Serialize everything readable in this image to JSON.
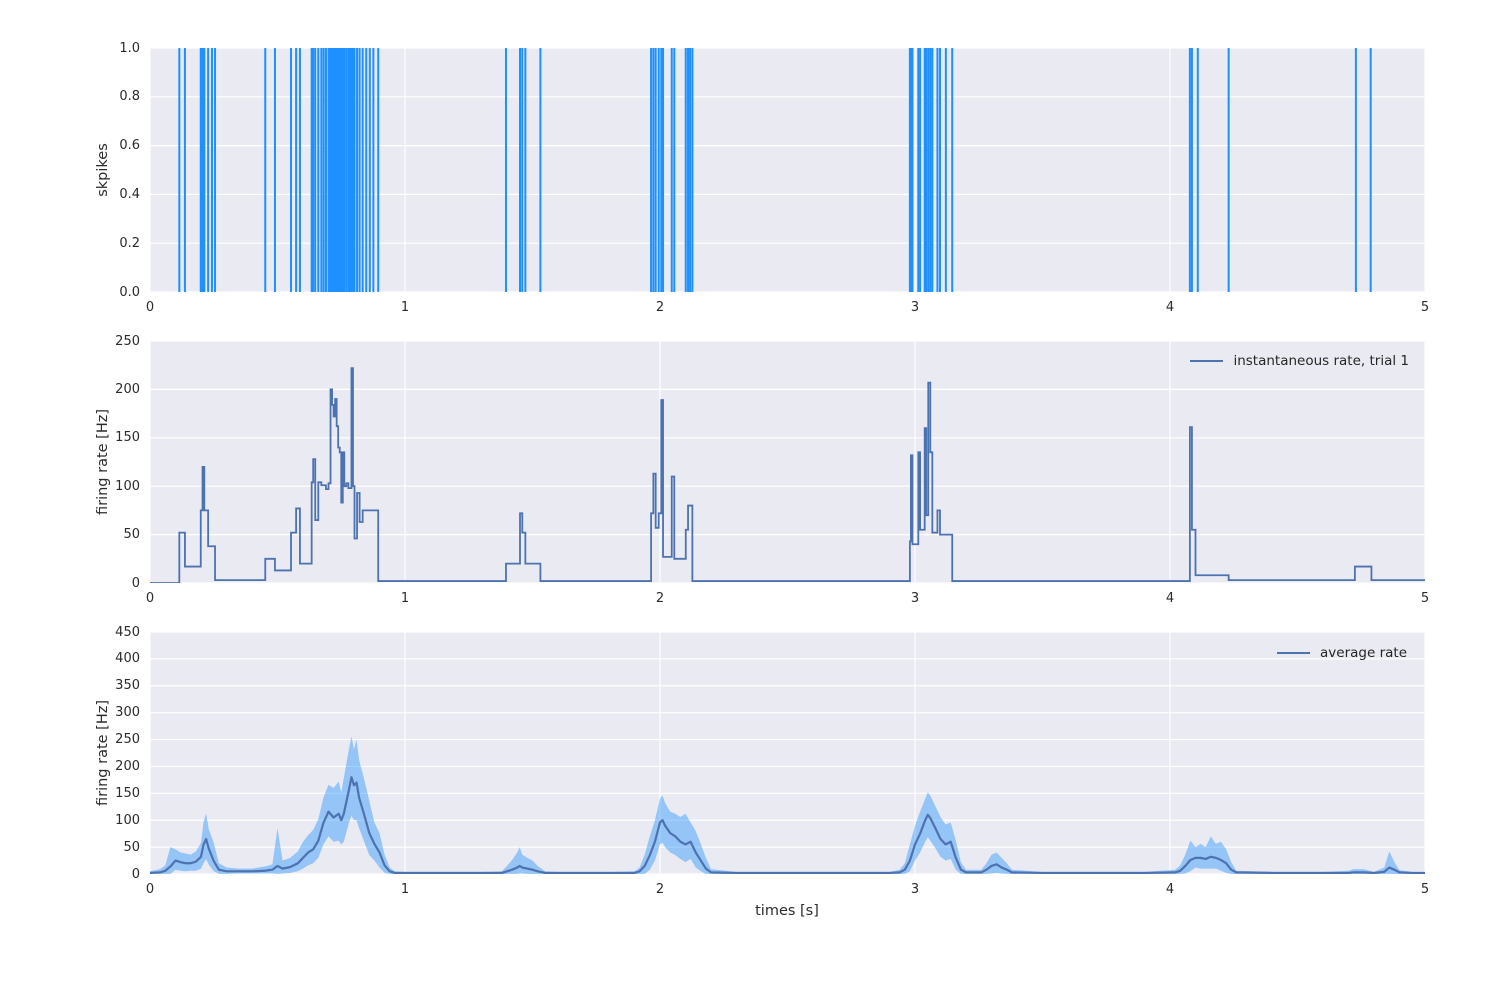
{
  "figure": {
    "background": "#ffffff",
    "axes_background": "#eaeaf2",
    "grid_color": "#ffffff",
    "text_color": "#2b2b2b"
  },
  "xticks": {
    "values": [
      0,
      1,
      2,
      3,
      4,
      5
    ],
    "labels": [
      "0",
      "1",
      "2",
      "3",
      "4",
      "5"
    ]
  },
  "chart_data": [
    {
      "type": "event-raster",
      "name": "spike-raster",
      "ylabel": "skpikes",
      "xlim": [
        0,
        5
      ],
      "ylim": [
        0,
        1
      ],
      "yticks": {
        "values": [
          0,
          0.2,
          0.4,
          0.6,
          0.8,
          1.0
        ],
        "labels": [
          "0.0",
          "0.2",
          "0.4",
          "0.6",
          "0.8",
          "1.0"
        ]
      },
      "grid": true,
      "color": "#1e90ff",
      "spike_times": [
        0.115,
        0.137,
        0.199,
        0.206,
        0.213,
        0.228,
        0.243,
        0.255,
        0.452,
        0.49,
        0.553,
        0.573,
        0.588,
        0.634,
        0.64,
        0.648,
        0.66,
        0.672,
        0.681,
        0.69,
        0.7,
        0.708,
        0.714,
        0.72,
        0.726,
        0.732,
        0.738,
        0.744,
        0.75,
        0.756,
        0.762,
        0.77,
        0.778,
        0.784,
        0.79,
        0.796,
        0.802,
        0.812,
        0.822,
        0.834,
        0.848,
        0.862,
        0.876,
        0.895,
        1.396,
        1.451,
        1.46,
        1.472,
        1.531,
        1.965,
        1.974,
        1.983,
        1.995,
        2.005,
        2.012,
        2.046,
        2.056,
        2.101,
        2.11,
        2.118,
        2.127,
        2.98,
        2.984,
        2.99,
        3.013,
        3.02,
        3.038,
        3.044,
        3.052,
        3.06,
        3.068,
        3.088,
        3.098,
        3.121,
        3.146,
        4.078,
        4.086,
        4.109,
        4.23,
        4.729,
        4.787
      ]
    },
    {
      "type": "step-line",
      "name": "instantaneous-rate",
      "ylabel": "firing rate [Hz]",
      "xlim": [
        0,
        5
      ],
      "ylim": [
        0,
        250
      ],
      "yticks": {
        "values": [
          0,
          50,
          100,
          150,
          200,
          250
        ],
        "labels": [
          "0",
          "50",
          "100",
          "150",
          "200",
          "250"
        ]
      },
      "grid": true,
      "legend": "instantaneous rate, trial 1",
      "legend_position": "upper right",
      "color": "#4c72b0",
      "steps": [
        [
          0.0,
          0
        ],
        [
          0.115,
          52
        ],
        [
          0.137,
          17
        ],
        [
          0.199,
          75
        ],
        [
          0.206,
          120
        ],
        [
          0.213,
          75
        ],
        [
          0.228,
          38
        ],
        [
          0.255,
          3
        ],
        [
          0.452,
          25
        ],
        [
          0.49,
          13
        ],
        [
          0.553,
          52
        ],
        [
          0.573,
          77
        ],
        [
          0.588,
          20
        ],
        [
          0.634,
          104
        ],
        [
          0.64,
          128
        ],
        [
          0.648,
          65
        ],
        [
          0.66,
          104
        ],
        [
          0.672,
          101
        ],
        [
          0.69,
          97
        ],
        [
          0.7,
          103
        ],
        [
          0.708,
          200
        ],
        [
          0.714,
          184
        ],
        [
          0.72,
          172
        ],
        [
          0.726,
          190
        ],
        [
          0.732,
          162
        ],
        [
          0.738,
          140
        ],
        [
          0.744,
          135
        ],
        [
          0.75,
          83
        ],
        [
          0.756,
          135
        ],
        [
          0.762,
          100
        ],
        [
          0.77,
          103
        ],
        [
          0.778,
          98
        ],
        [
          0.79,
          222
        ],
        [
          0.796,
          100
        ],
        [
          0.802,
          46
        ],
        [
          0.812,
          93
        ],
        [
          0.822,
          63
        ],
        [
          0.834,
          75
        ],
        [
          0.895,
          2
        ],
        [
          1.396,
          20
        ],
        [
          1.451,
          72
        ],
        [
          1.46,
          52
        ],
        [
          1.472,
          20
        ],
        [
          1.531,
          2
        ],
        [
          1.965,
          72
        ],
        [
          1.974,
          113
        ],
        [
          1.983,
          57
        ],
        [
          1.995,
          72
        ],
        [
          2.005,
          189
        ],
        [
          2.012,
          27
        ],
        [
          2.046,
          110
        ],
        [
          2.056,
          25
        ],
        [
          2.101,
          55
        ],
        [
          2.11,
          80
        ],
        [
          2.127,
          2
        ],
        [
          2.98,
          43
        ],
        [
          2.984,
          132
        ],
        [
          2.99,
          40
        ],
        [
          3.013,
          135
        ],
        [
          3.02,
          55
        ],
        [
          3.038,
          160
        ],
        [
          3.044,
          70
        ],
        [
          3.052,
          207
        ],
        [
          3.06,
          135
        ],
        [
          3.068,
          52
        ],
        [
          3.088,
          75
        ],
        [
          3.098,
          50
        ],
        [
          3.146,
          2
        ],
        [
          4.078,
          161
        ],
        [
          4.086,
          55
        ],
        [
          4.1,
          8
        ],
        [
          4.23,
          3
        ],
        [
          4.725,
          17
        ],
        [
          4.79,
          3
        ]
      ]
    },
    {
      "type": "line-band",
      "name": "average-rate",
      "ylabel": "firing rate [Hz]",
      "xlabel": "times [s]",
      "xlim": [
        0,
        5
      ],
      "ylim": [
        0,
        450
      ],
      "yticks": {
        "values": [
          0,
          50,
          100,
          150,
          200,
          250,
          300,
          350,
          400,
          450
        ],
        "labels": [
          "0",
          "50",
          "100",
          "150",
          "200",
          "250",
          "300",
          "350",
          "400",
          "450"
        ]
      },
      "grid": true,
      "legend": "average rate",
      "legend_position": "upper right",
      "line_color": "#4c72b0",
      "band_color": "#1e90ff",
      "band_opacity": 0.42,
      "points": [
        [
          0.0,
          2,
          5,
          0
        ],
        [
          0.04,
          3,
          9,
          0
        ],
        [
          0.06,
          6,
          16,
          0
        ],
        [
          0.08,
          14,
          50,
          0
        ],
        [
          0.1,
          25,
          46,
          8
        ],
        [
          0.12,
          22,
          40,
          6
        ],
        [
          0.14,
          20,
          38,
          5
        ],
        [
          0.16,
          20,
          36,
          6
        ],
        [
          0.18,
          23,
          42,
          6
        ],
        [
          0.2,
          32,
          58,
          10
        ],
        [
          0.21,
          55,
          96,
          20
        ],
        [
          0.22,
          65,
          113,
          28
        ],
        [
          0.23,
          48,
          84,
          18
        ],
        [
          0.25,
          24,
          58,
          5
        ],
        [
          0.27,
          8,
          20,
          0
        ],
        [
          0.3,
          5,
          12,
          0
        ],
        [
          0.35,
          5,
          10,
          1
        ],
        [
          0.4,
          5,
          10,
          1
        ],
        [
          0.45,
          6,
          14,
          1
        ],
        [
          0.48,
          8,
          18,
          1
        ],
        [
          0.5,
          15,
          85,
          0
        ],
        [
          0.52,
          10,
          25,
          1
        ],
        [
          0.55,
          13,
          30,
          2
        ],
        [
          0.58,
          20,
          42,
          5
        ],
        [
          0.6,
          30,
          60,
          10
        ],
        [
          0.62,
          40,
          72,
          16
        ],
        [
          0.64,
          46,
          82,
          20
        ],
        [
          0.66,
          62,
          102,
          30
        ],
        [
          0.68,
          95,
          142,
          55
        ],
        [
          0.7,
          116,
          166,
          70
        ],
        [
          0.72,
          105,
          160,
          60
        ],
        [
          0.74,
          112,
          172,
          62
        ],
        [
          0.75,
          100,
          152,
          55
        ],
        [
          0.76,
          112,
          178,
          60
        ],
        [
          0.78,
          156,
          232,
          95
        ],
        [
          0.79,
          180,
          256,
          108
        ],
        [
          0.8,
          165,
          232,
          100
        ],
        [
          0.81,
          170,
          250,
          100
        ],
        [
          0.82,
          142,
          212,
          85
        ],
        [
          0.84,
          110,
          176,
          60
        ],
        [
          0.86,
          76,
          136,
          35
        ],
        [
          0.88,
          56,
          96,
          25
        ],
        [
          0.9,
          40,
          76,
          12
        ],
        [
          0.92,
          16,
          36,
          2
        ],
        [
          0.94,
          5,
          12,
          0
        ],
        [
          0.96,
          2,
          5,
          0
        ],
        [
          1.0,
          2,
          4,
          0
        ],
        [
          1.1,
          2,
          4,
          0
        ],
        [
          1.2,
          2,
          4,
          0
        ],
        [
          1.3,
          2,
          4,
          0
        ],
        [
          1.38,
          2,
          5,
          0
        ],
        [
          1.4,
          5,
          15,
          0
        ],
        [
          1.42,
          8,
          26,
          0
        ],
        [
          1.44,
          12,
          40,
          0
        ],
        [
          1.45,
          15,
          50,
          1
        ],
        [
          1.46,
          12,
          36,
          1
        ],
        [
          1.48,
          10,
          30,
          0
        ],
        [
          1.5,
          8,
          25,
          0
        ],
        [
          1.52,
          5,
          15,
          0
        ],
        [
          1.55,
          2,
          5,
          0
        ],
        [
          1.6,
          2,
          4,
          0
        ],
        [
          1.7,
          2,
          4,
          0
        ],
        [
          1.8,
          2,
          4,
          0
        ],
        [
          1.9,
          2,
          5,
          0
        ],
        [
          1.92,
          5,
          12,
          0
        ],
        [
          1.94,
          15,
          36,
          0
        ],
        [
          1.96,
          35,
          70,
          8
        ],
        [
          1.98,
          60,
          100,
          25
        ],
        [
          2.0,
          96,
          140,
          55
        ],
        [
          2.01,
          100,
          146,
          58
        ],
        [
          2.02,
          90,
          132,
          50
        ],
        [
          2.04,
          76,
          116,
          40
        ],
        [
          2.06,
          70,
          112,
          35
        ],
        [
          2.08,
          60,
          106,
          28
        ],
        [
          2.1,
          55,
          112,
          22
        ],
        [
          2.12,
          60,
          96,
          28
        ],
        [
          2.14,
          40,
          80,
          12
        ],
        [
          2.16,
          25,
          56,
          5
        ],
        [
          2.18,
          10,
          30,
          0
        ],
        [
          2.2,
          3,
          9,
          0
        ],
        [
          2.3,
          2,
          4,
          0
        ],
        [
          2.5,
          2,
          4,
          0
        ],
        [
          2.7,
          2,
          4,
          0
        ],
        [
          2.9,
          2,
          4,
          0
        ],
        [
          2.94,
          3,
          8,
          0
        ],
        [
          2.96,
          8,
          20,
          0
        ],
        [
          2.98,
          25,
          55,
          5
        ],
        [
          3.0,
          55,
          90,
          25
        ],
        [
          3.02,
          75,
          116,
          40
        ],
        [
          3.04,
          100,
          140,
          60
        ],
        [
          3.05,
          110,
          152,
          68
        ],
        [
          3.06,
          104,
          146,
          62
        ],
        [
          3.08,
          85,
          126,
          48
        ],
        [
          3.1,
          65,
          106,
          32
        ],
        [
          3.12,
          55,
          92,
          25
        ],
        [
          3.14,
          60,
          96,
          28
        ],
        [
          3.16,
          30,
          62,
          8
        ],
        [
          3.18,
          8,
          22,
          0
        ],
        [
          3.2,
          3,
          8,
          0
        ],
        [
          3.26,
          3,
          8,
          0
        ],
        [
          3.28,
          8,
          20,
          0
        ],
        [
          3.3,
          15,
          36,
          1
        ],
        [
          3.32,
          18,
          40,
          2
        ],
        [
          3.34,
          12,
          30,
          1
        ],
        [
          3.36,
          8,
          20,
          0
        ],
        [
          3.38,
          3,
          8,
          0
        ],
        [
          3.5,
          2,
          4,
          0
        ],
        [
          3.7,
          2,
          4,
          0
        ],
        [
          3.9,
          2,
          4,
          0
        ],
        [
          4.02,
          3,
          8,
          0
        ],
        [
          4.04,
          6,
          16,
          0
        ],
        [
          4.06,
          15,
          36,
          1
        ],
        [
          4.08,
          26,
          62,
          5
        ],
        [
          4.1,
          30,
          50,
          12
        ],
        [
          4.12,
          30,
          56,
          10
        ],
        [
          4.14,
          28,
          50,
          10
        ],
        [
          4.16,
          32,
          70,
          10
        ],
        [
          4.18,
          30,
          56,
          10
        ],
        [
          4.2,
          26,
          60,
          6
        ],
        [
          4.22,
          20,
          46,
          2
        ],
        [
          4.24,
          8,
          22,
          0
        ],
        [
          4.26,
          3,
          6,
          0
        ],
        [
          4.4,
          2,
          4,
          0
        ],
        [
          4.6,
          2,
          4,
          0
        ],
        [
          4.7,
          2,
          6,
          0
        ],
        [
          4.72,
          3,
          9,
          0
        ],
        [
          4.76,
          3,
          9,
          0
        ],
        [
          4.8,
          2,
          4,
          0
        ],
        [
          4.84,
          4,
          12,
          0
        ],
        [
          4.86,
          12,
          42,
          0
        ],
        [
          4.88,
          8,
          22,
          0
        ],
        [
          4.9,
          3,
          7,
          0
        ],
        [
          4.95,
          2,
          4,
          0
        ],
        [
          5.0,
          2,
          3,
          0
        ]
      ]
    }
  ]
}
